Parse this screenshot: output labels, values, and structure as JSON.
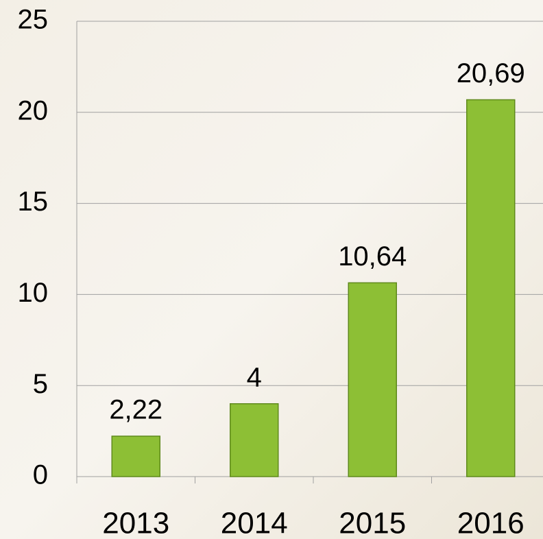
{
  "chart_data": {
    "type": "bar",
    "categories": [
      "2013",
      "2014",
      "2015",
      "2016"
    ],
    "values": [
      2.22,
      4,
      10.64,
      20.69
    ],
    "value_labels": [
      "2,22",
      "4",
      "10,64",
      "20,69"
    ],
    "color": "#8dbf35",
    "ylim": [
      0,
      25
    ],
    "yticks": [
      0,
      5,
      10,
      15,
      20,
      25
    ],
    "grid": true
  }
}
